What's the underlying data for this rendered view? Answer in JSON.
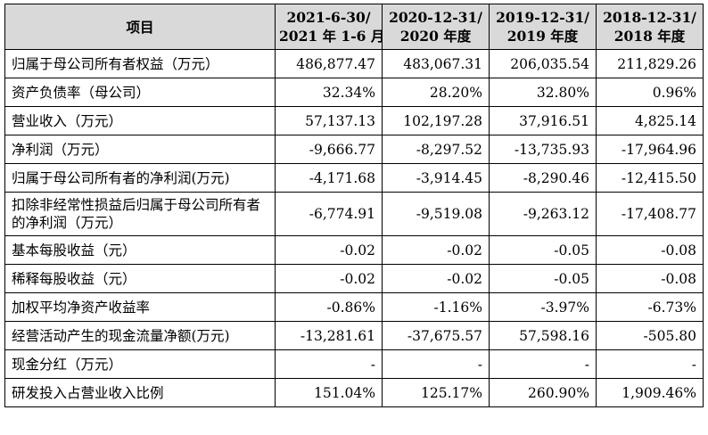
{
  "table": {
    "header": {
      "item": "项目",
      "periods": [
        {
          "line1": "2021-6-30/",
          "line2": "2021 年 1-6 月"
        },
        {
          "line1": "2020-12-31/",
          "line2": "2020 年度"
        },
        {
          "line1": "2019-12-31/",
          "line2": "2019 年度"
        },
        {
          "line1": "2018-12-31/",
          "line2": "2018 年度"
        }
      ]
    },
    "rows": [
      {
        "label": "归属于母公司所有者权益（万元）",
        "values": [
          "486,877.47",
          "483,067.31",
          "206,035.54",
          "211,829.26"
        ]
      },
      {
        "label": "资产负债率（母公司）",
        "values": [
          "32.34%",
          "28.20%",
          "32.80%",
          "0.96%"
        ]
      },
      {
        "label": "营业收入（万元）",
        "values": [
          "57,137.13",
          "102,197.28",
          "37,916.51",
          "4,825.14"
        ]
      },
      {
        "label": "净利润（万元）",
        "values": [
          "-9,666.77",
          "-8,297.52",
          "-13,735.93",
          "-17,964.96"
        ]
      },
      {
        "label": "归属于母公司所有者的净利润(万元)",
        "values": [
          "-4,171.68",
          "-3,914.45",
          "-8,290.46",
          "-12,415.50"
        ]
      },
      {
        "label": "扣除非经常性损益后归属于母公司所有者的净利润（万元）",
        "values": [
          "-6,774.91",
          "-9,519.08",
          "-9,263.12",
          "-17,408.77"
        ]
      },
      {
        "label": "基本每股收益（元）",
        "values": [
          "-0.02",
          "-0.02",
          "-0.05",
          "-0.08"
        ]
      },
      {
        "label": "稀释每股收益（元）",
        "values": [
          "-0.02",
          "-0.02",
          "-0.05",
          "-0.08"
        ]
      },
      {
        "label": "加权平均净资产收益率",
        "values": [
          "-0.86%",
          "-1.16%",
          "-3.97%",
          "-6.73%"
        ]
      },
      {
        "label": "经营活动产生的现金流量净额(万元)",
        "values": [
          "-13,281.61",
          "-37,675.57",
          "57,598.16",
          "-505.80"
        ]
      },
      {
        "label": "现金分红（万元）",
        "values": [
          "-",
          "-",
          "-",
          "-"
        ]
      },
      {
        "label": "研发投入占营业收入比例",
        "values": [
          "151.04%",
          "125.17%",
          "260.90%",
          "1,909.46%"
        ]
      }
    ]
  }
}
